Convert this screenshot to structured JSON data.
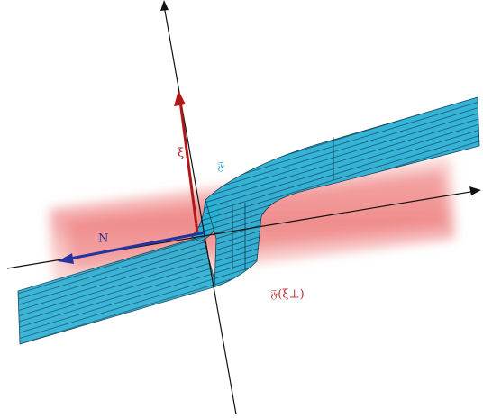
{
  "labels": {
    "xi": "ξ",
    "frak_f": "𝔉",
    "normal": "N",
    "frak_f_xi_perp": "𝔉(ξ⊥)"
  }
}
